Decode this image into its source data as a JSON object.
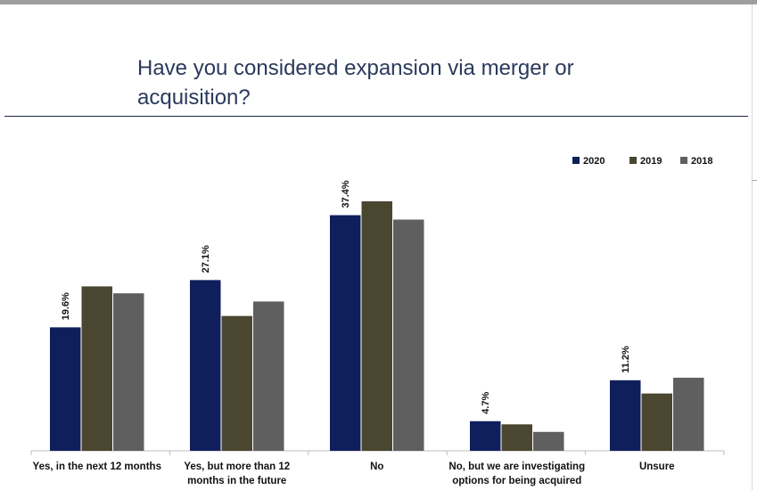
{
  "page": {
    "title": "Have you considered expansion via merger or acquisition?"
  },
  "chart_data": {
    "type": "bar",
    "title": "Have you considered expansion via merger or acquisition?",
    "categories": [
      [
        "Yes, in the next 12 months"
      ],
      [
        "Yes, but more than 12",
        "months in the future"
      ],
      [
        "No"
      ],
      [
        "No, but we are investigating",
        "options for being acquired"
      ],
      [
        "Unsure"
      ]
    ],
    "series": [
      {
        "name": "2020",
        "color": "#0f1f5c",
        "values": [
          19.6,
          27.1,
          37.4,
          4.7,
          11.2
        ]
      },
      {
        "name": "2019",
        "color": "#4a4630",
        "values": [
          26.1,
          21.4,
          39.6,
          4.2,
          9.1
        ]
      },
      {
        "name": "2018",
        "color": "#5f5f5f",
        "values": [
          25.0,
          23.7,
          36.7,
          3.0,
          11.6
        ]
      }
    ],
    "data_labels": [
      "19.6%",
      "27.1%",
      "37.4%",
      "4.7%",
      "11.2%"
    ],
    "ylim": [
      0,
      42
    ],
    "legend_position": "top-right",
    "grid": false,
    "xlabel": "",
    "ylabel": ""
  }
}
